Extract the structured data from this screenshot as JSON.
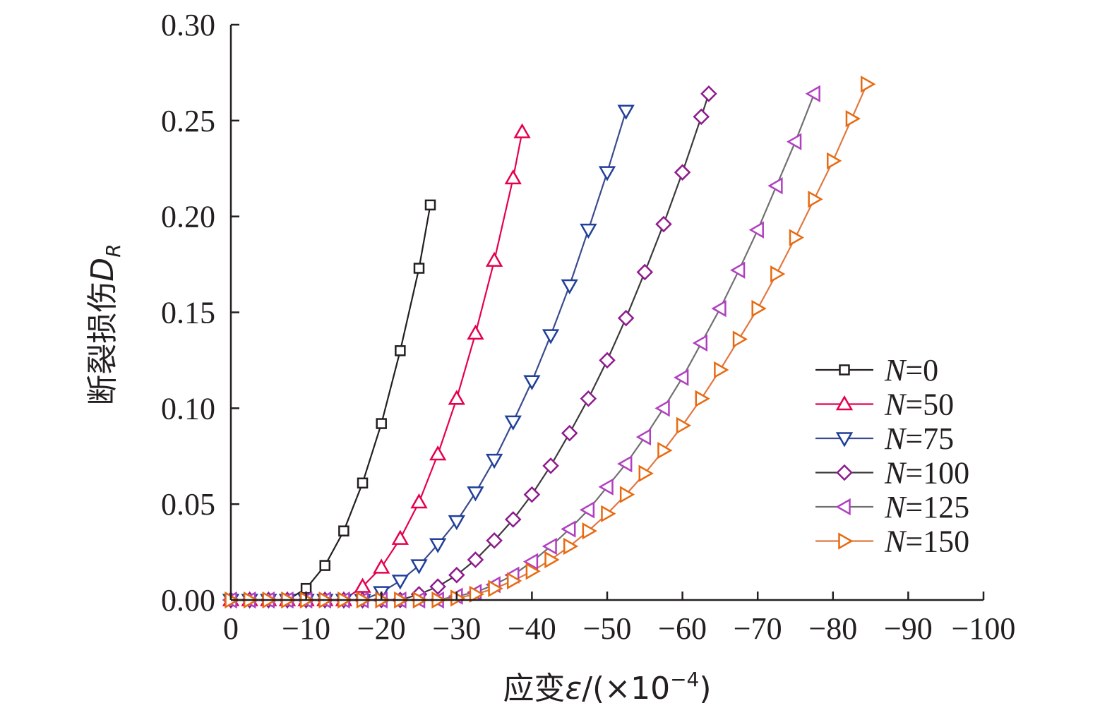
{
  "chart_data": {
    "type": "line",
    "title": "",
    "xlabel": {
      "prefix": "应变",
      "symbol": "ε",
      "unit": "/(×10",
      "exponent": "−4",
      "close": ")"
    },
    "ylabel": {
      "prefix": "断裂损伤",
      "symbol": "D",
      "subscript": "R"
    },
    "xlim": [
      0,
      -100
    ],
    "ylim": [
      0,
      0.3
    ],
    "x_ticks": [
      0,
      -10,
      -20,
      -30,
      -40,
      -50,
      -60,
      -70,
      -80,
      -90,
      -100
    ],
    "x_tick_labels": [
      "0",
      "−10",
      "−20",
      "−30",
      "−40",
      "−50",
      "−60",
      "−70",
      "−80",
      "−90",
      "−100"
    ],
    "y_ticks": [
      0,
      0.05,
      0.1,
      0.15,
      0.2,
      0.25,
      0.3
    ],
    "y_tick_labels": [
      "0.00",
      "0.05",
      "0.10",
      "0.15",
      "0.20",
      "0.25",
      "0.30"
    ],
    "grid": false,
    "legend_position": "right",
    "series": [
      {
        "name": "N=0",
        "label_var": "N",
        "label_val": "=0",
        "marker": "square",
        "color": "#231f20",
        "line_color": "#231f20",
        "x": [
          0,
          -2.5,
          -5,
          -7.5,
          -10,
          -12.5,
          -15,
          -17.5,
          -20,
          -22.5,
          -25,
          -26.5
        ],
        "y": [
          0.0,
          0.0,
          0.0,
          0.0,
          0.006,
          0.018,
          0.036,
          0.061,
          0.092,
          0.13,
          0.173,
          0.206
        ]
      },
      {
        "name": "N=50",
        "label_var": "N",
        "label_val": "=50",
        "marker": "triangle-up",
        "color": "#e6004c",
        "line_color": "#e6004c",
        "x": [
          0,
          -2.5,
          -5,
          -7.5,
          -10,
          -12.5,
          -15,
          -17.5,
          -20,
          -22.5,
          -25,
          -27.5,
          -30,
          -32.5,
          -35,
          -37.5,
          -38.7
        ],
        "y": [
          0.0,
          0.0,
          0.0,
          0.0,
          0.0,
          0.0,
          0.0,
          0.007,
          0.017,
          0.032,
          0.051,
          0.076,
          0.105,
          0.139,
          0.177,
          0.22,
          0.244
        ]
      },
      {
        "name": "N=75",
        "label_var": "N",
        "label_val": "=75",
        "marker": "triangle-down",
        "color": "#1f3f9a",
        "line_color": "#3b4a8c",
        "x": [
          0,
          -2.5,
          -5,
          -7.5,
          -10,
          -12.5,
          -15,
          -17.5,
          -20,
          -22.5,
          -25,
          -27.5,
          -30,
          -32.5,
          -35,
          -37.5,
          -40,
          -42.5,
          -45,
          -47.5,
          -50,
          -52.5
        ],
        "y": [
          0.0,
          0.0,
          0.0,
          0.0,
          0.0,
          0.0,
          0.0,
          0.0,
          0.004,
          0.01,
          0.018,
          0.029,
          0.041,
          0.056,
          0.073,
          0.093,
          0.114,
          0.138,
          0.164,
          0.193,
          0.223,
          0.255
        ]
      },
      {
        "name": "N=100",
        "label_var": "N",
        "label_val": "=100",
        "marker": "diamond",
        "color": "#8e1a8e",
        "line_color": "#3a3a3a",
        "x": [
          0,
          -2.5,
          -5,
          -7.5,
          -10,
          -12.5,
          -15,
          -17.5,
          -20,
          -22.5,
          -25,
          -27.5,
          -30,
          -32.5,
          -35,
          -37.5,
          -40,
          -42.5,
          -45,
          -47.5,
          -50,
          -52.5,
          -55,
          -57.5,
          -60,
          -62.5,
          -63.5
        ],
        "y": [
          0.0,
          0.0,
          0.0,
          0.0,
          0.0,
          0.0,
          0.0,
          0.0,
          0.0,
          0.0,
          0.003,
          0.007,
          0.013,
          0.021,
          0.031,
          0.042,
          0.055,
          0.07,
          0.087,
          0.105,
          0.125,
          0.147,
          0.171,
          0.196,
          0.223,
          0.252,
          0.264
        ]
      },
      {
        "name": "N=125",
        "label_var": "N",
        "label_val": "=125",
        "marker": "triangle-left",
        "color": "#b040c0",
        "line_color": "#707070",
        "x": [
          0,
          -2.5,
          -5,
          -7.5,
          -10,
          -12.5,
          -15,
          -17.5,
          -20,
          -22.5,
          -25,
          -27.5,
          -30,
          -32.5,
          -35,
          -37.5,
          -40,
          -42.5,
          -45,
          -47.5,
          -50,
          -52.5,
          -55,
          -57.5,
          -60,
          -62.5,
          -65,
          -67.5,
          -70,
          -72.5,
          -75,
          -77.5
        ],
        "y": [
          0.0,
          0.0,
          0.0,
          0.0,
          0.0,
          0.0,
          0.0,
          0.0,
          0.0,
          0.0,
          0.0,
          0.0,
          0.002,
          0.004,
          0.008,
          0.013,
          0.02,
          0.028,
          0.037,
          0.047,
          0.059,
          0.071,
          0.085,
          0.1,
          0.116,
          0.134,
          0.152,
          0.172,
          0.193,
          0.216,
          0.239,
          0.264
        ]
      },
      {
        "name": "N=150",
        "label_var": "N",
        "label_val": "=150",
        "marker": "triangle-right",
        "color": "#e86a10",
        "line_color": "#e07840",
        "x": [
          0,
          -2.5,
          -5,
          -7.5,
          -10,
          -12.5,
          -15,
          -17.5,
          -20,
          -22.5,
          -25,
          -27.5,
          -30,
          -32.5,
          -35,
          -37.5,
          -40,
          -42.5,
          -45,
          -47.5,
          -50,
          -52.5,
          -55,
          -57.5,
          -60,
          -62.5,
          -65,
          -67.5,
          -70,
          -72.5,
          -75,
          -77.5,
          -80,
          -82.5,
          -84.5
        ],
        "y": [
          0.0,
          0.0,
          0.0,
          0.0,
          0.0,
          0.0,
          0.0,
          0.0,
          0.0,
          0.0,
          0.0,
          0.0,
          0.001,
          0.003,
          0.006,
          0.01,
          0.015,
          0.021,
          0.028,
          0.036,
          0.045,
          0.055,
          0.066,
          0.078,
          0.091,
          0.105,
          0.12,
          0.136,
          0.152,
          0.17,
          0.189,
          0.209,
          0.229,
          0.251,
          0.269
        ]
      }
    ]
  }
}
